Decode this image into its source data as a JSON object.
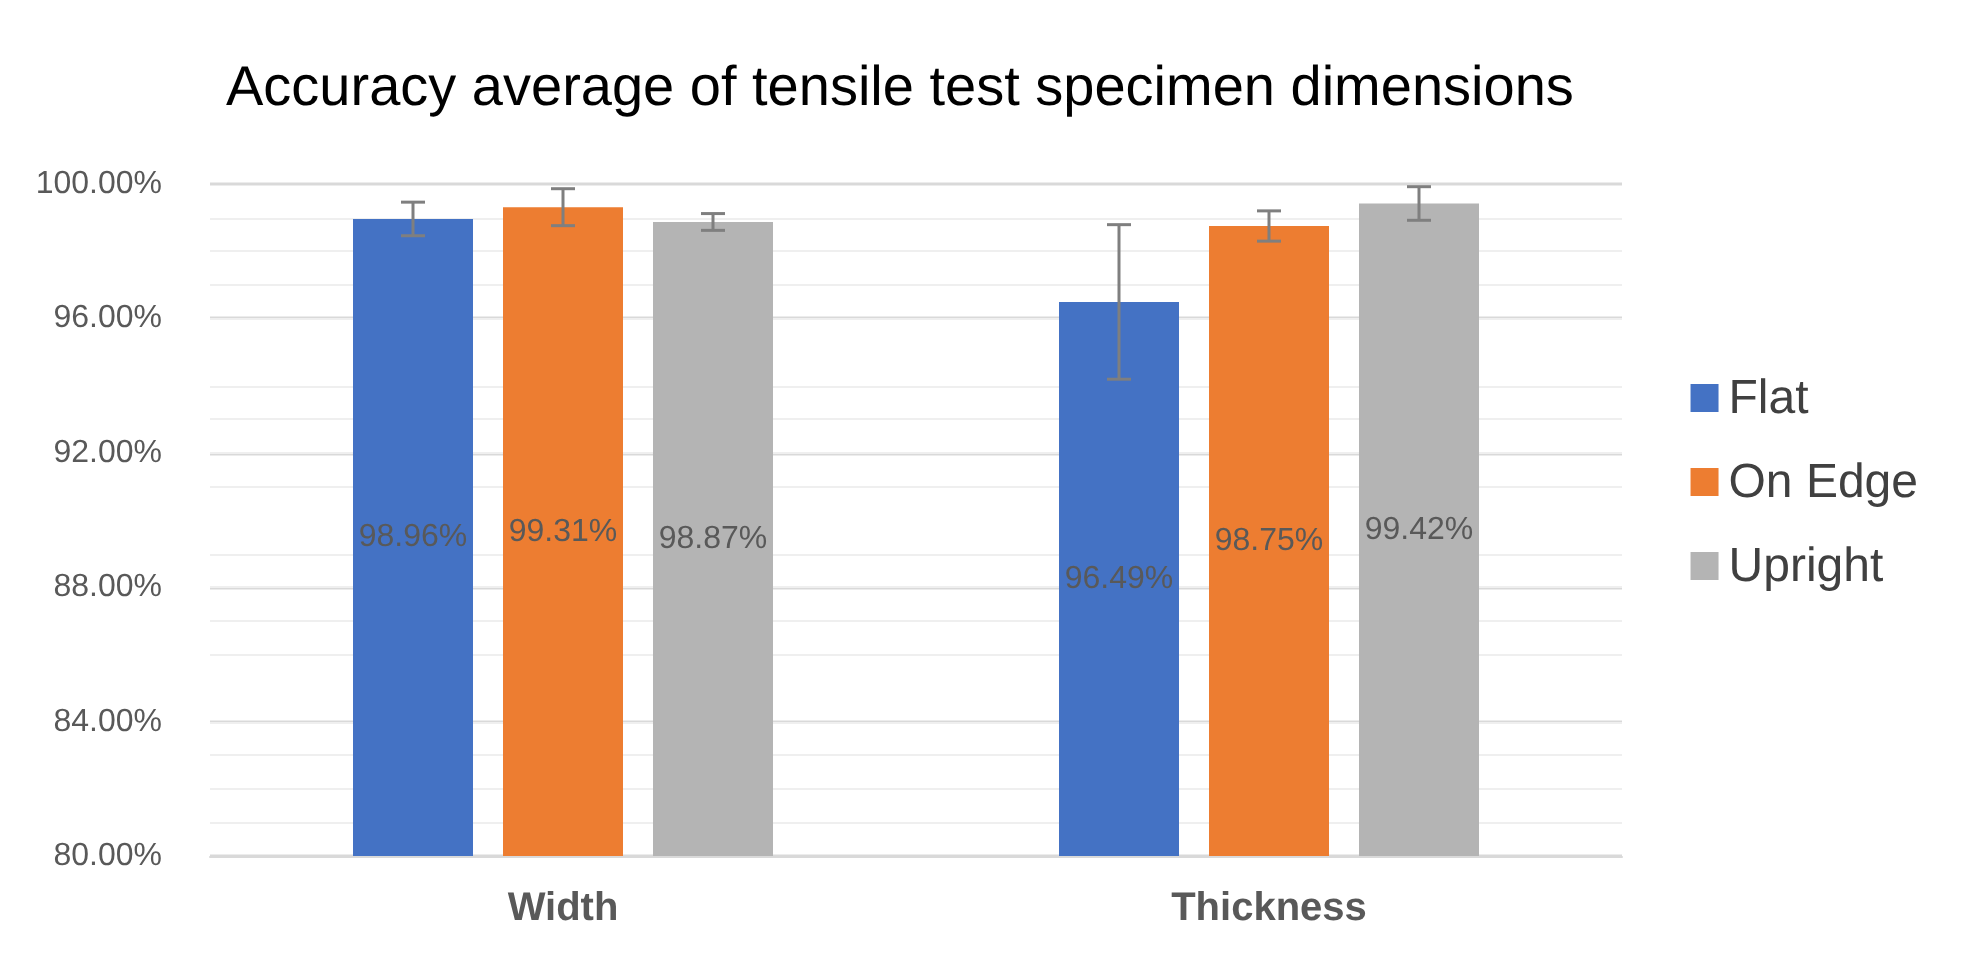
{
  "chart_data": {
    "type": "bar",
    "title": "Accuracy average of tensile test specimen dimensions",
    "categories": [
      "Width",
      "Thickness"
    ],
    "series": [
      {
        "name": "Flat",
        "color": "#4472c4",
        "values": [
          98.96,
          96.49
        ],
        "errors": [
          0.5,
          2.3
        ],
        "value_labels": [
          "98.96%",
          "96.49%"
        ]
      },
      {
        "name": "On Edge",
        "color": "#ed7d31",
        "values": [
          99.31,
          98.75
        ],
        "errors": [
          0.55,
          0.45
        ],
        "value_labels": [
          "99.31%",
          "98.75%"
        ]
      },
      {
        "name": "Upright",
        "color": "#b4b4b4",
        "values": [
          98.87,
          99.42
        ],
        "errors": [
          0.25,
          0.5
        ],
        "value_labels": [
          "98.87%",
          "99.42%"
        ]
      }
    ],
    "ylim": [
      80,
      100
    ],
    "yticks": [
      {
        "value": 80,
        "label": "80.00%"
      },
      {
        "value": 84,
        "label": "84.00%"
      },
      {
        "value": 88,
        "label": "88.00%"
      },
      {
        "value": 92,
        "label": "92.00%"
      },
      {
        "value": 96,
        "label": "96.00%"
      },
      {
        "value": 100,
        "label": "100.00%"
      }
    ],
    "grid": true,
    "legend": "right"
  }
}
